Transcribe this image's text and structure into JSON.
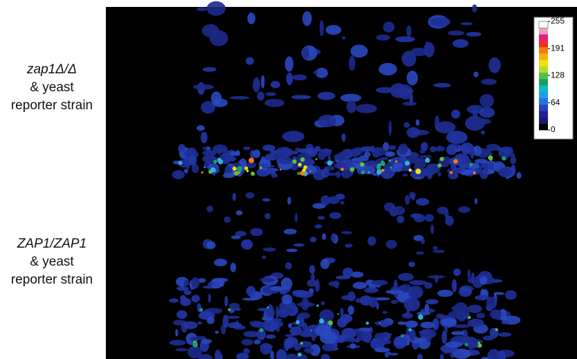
{
  "panels": [
    {
      "label": [
        "zap1Δ/Δ",
        "& yeast",
        "reporter strain"
      ]
    },
    {
      "label": [
        "ZAP1/ZAP1",
        "& yeast",
        "reporter strain"
      ]
    }
  ],
  "colorbar": {
    "ticks": [
      0,
      64,
      128,
      191,
      255
    ],
    "range": [
      0,
      255
    ],
    "colors": [
      "#000000",
      "#1a1a6e",
      "#22229a",
      "#2b3fc4",
      "#2f6fe0",
      "#1aa0e8",
      "#16b8c0",
      "#1a9e6a",
      "#4ec24a",
      "#b8dc2a",
      "#f0e010",
      "#f6b010",
      "#f47a18",
      "#ec3020",
      "#e81e78",
      "#e8a0c8",
      "#ffffff"
    ]
  }
}
